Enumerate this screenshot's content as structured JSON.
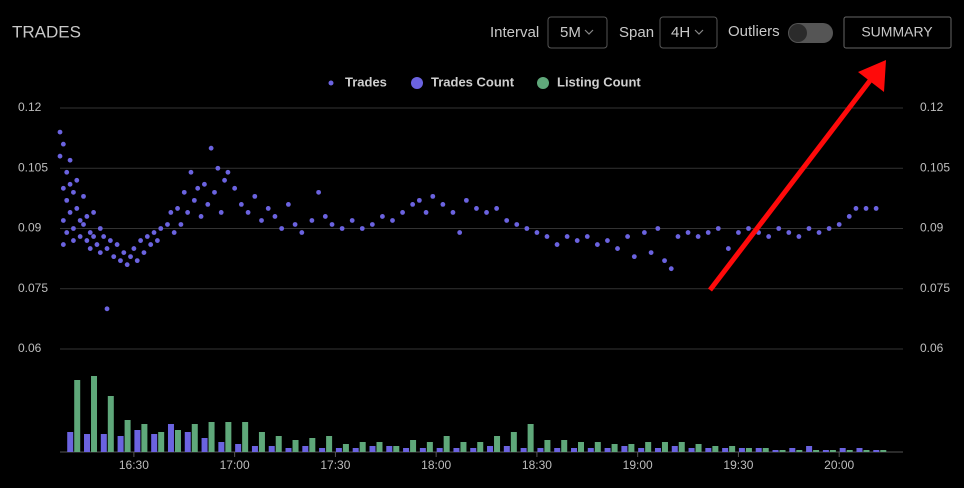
{
  "header": {
    "title": "TRADES",
    "interval_label": "Interval",
    "interval_value": "5M",
    "span_label": "Span",
    "span_value": "4H",
    "outliers_label": "Outliers",
    "summary_button": "SUMMARY"
  },
  "chart_data": {
    "type": "scatter",
    "xlim": [
      "16:08",
      "20:19"
    ],
    "xticks": [
      "16:30",
      "17:00",
      "17:30",
      "18:00",
      "18:30",
      "19:00",
      "19:30",
      "20:00"
    ],
    "ylim": [
      0.06,
      0.12
    ],
    "yticks": [
      0.06,
      0.075,
      0.09,
      0.105,
      0.12
    ],
    "grid": true,
    "series": [
      {
        "name": "Trades",
        "type": "scatter",
        "color": "#6b63e0",
        "x": [
          "16:08",
          "16:08",
          "16:09",
          "16:09",
          "16:09",
          "16:09",
          "16:10",
          "16:10",
          "16:10",
          "16:11",
          "16:11",
          "16:11",
          "16:12",
          "16:12",
          "16:12",
          "16:13",
          "16:13",
          "16:14",
          "16:14",
          "16:15",
          "16:15",
          "16:16",
          "16:16",
          "16:17",
          "16:17",
          "16:18",
          "16:18",
          "16:19",
          "16:20",
          "16:20",
          "16:21",
          "16:22",
          "16:22",
          "16:23",
          "16:24",
          "16:25",
          "16:26",
          "16:27",
          "16:28",
          "16:29",
          "16:30",
          "16:31",
          "16:32",
          "16:33",
          "16:34",
          "16:35",
          "16:36",
          "16:37",
          "16:38",
          "16:40",
          "16:41",
          "16:42",
          "16:43",
          "16:44",
          "16:45",
          "16:46",
          "16:47",
          "16:48",
          "16:49",
          "16:50",
          "16:51",
          "16:52",
          "16:53",
          "16:54",
          "16:55",
          "16:56",
          "16:57",
          "16:58",
          "17:00",
          "17:02",
          "17:04",
          "17:06",
          "17:08",
          "17:10",
          "17:12",
          "17:14",
          "17:16",
          "17:18",
          "17:20",
          "17:23",
          "17:25",
          "17:27",
          "17:29",
          "17:32",
          "17:35",
          "17:38",
          "17:41",
          "17:44",
          "17:47",
          "17:50",
          "17:53",
          "17:55",
          "17:57",
          "17:59",
          "18:02",
          "18:05",
          "18:07",
          "18:09",
          "18:12",
          "18:15",
          "18:18",
          "18:21",
          "18:24",
          "18:27",
          "18:30",
          "18:33",
          "18:36",
          "18:39",
          "18:42",
          "18:45",
          "18:48",
          "18:51",
          "18:54",
          "18:57",
          "18:59",
          "19:02",
          "19:04",
          "19:06",
          "19:08",
          "19:10",
          "19:12",
          "19:15",
          "19:18",
          "19:21",
          "19:24",
          "19:27",
          "19:30",
          "19:33",
          "19:36",
          "19:39",
          "19:42",
          "19:45",
          "19:48",
          "19:51",
          "19:54",
          "19:57",
          "20:00",
          "20:03",
          "20:05",
          "20:08",
          "20:11"
        ],
        "values": [
          0.114,
          0.108,
          0.111,
          0.1,
          0.092,
          0.086,
          0.104,
          0.097,
          0.089,
          0.107,
          0.101,
          0.094,
          0.099,
          0.09,
          0.087,
          0.102,
          0.095,
          0.092,
          0.088,
          0.098,
          0.091,
          0.093,
          0.087,
          0.089,
          0.085,
          0.094,
          0.088,
          0.086,
          0.09,
          0.084,
          0.088,
          0.085,
          0.07,
          0.087,
          0.083,
          0.086,
          0.082,
          0.084,
          0.081,
          0.083,
          0.085,
          0.082,
          0.087,
          0.084,
          0.088,
          0.086,
          0.089,
          0.087,
          0.09,
          0.091,
          0.094,
          0.089,
          0.095,
          0.091,
          0.099,
          0.094,
          0.104,
          0.097,
          0.1,
          0.093,
          0.101,
          0.096,
          0.11,
          0.099,
          0.105,
          0.094,
          0.102,
          0.104,
          0.1,
          0.096,
          0.094,
          0.098,
          0.092,
          0.095,
          0.093,
          0.09,
          0.096,
          0.091,
          0.089,
          0.092,
          0.099,
          0.093,
          0.091,
          0.09,
          0.092,
          0.09,
          0.091,
          0.093,
          0.092,
          0.094,
          0.096,
          0.097,
          0.094,
          0.098,
          0.096,
          0.094,
          0.089,
          0.097,
          0.095,
          0.094,
          0.095,
          0.092,
          0.091,
          0.09,
          0.089,
          0.088,
          0.086,
          0.088,
          0.087,
          0.088,
          0.086,
          0.087,
          0.085,
          0.088,
          0.083,
          0.089,
          0.084,
          0.09,
          0.082,
          0.08,
          0.088,
          0.089,
          0.088,
          0.089,
          0.09,
          0.085,
          0.089,
          0.09,
          0.089,
          0.088,
          0.09,
          0.089,
          0.088,
          0.09,
          0.089,
          0.09,
          0.091,
          0.093,
          0.095,
          0.095,
          0.095
        ]
      },
      {
        "name": "Trades Count",
        "type": "bar",
        "color": "#6b63e0",
        "x": [
          "16:10",
          "16:15",
          "16:20",
          "16:25",
          "16:30",
          "16:35",
          "16:40",
          "16:45",
          "16:50",
          "16:55",
          "17:00",
          "17:05",
          "17:10",
          "17:15",
          "17:20",
          "17:25",
          "17:30",
          "17:35",
          "17:40",
          "17:45",
          "17:50",
          "17:55",
          "18:00",
          "18:05",
          "18:10",
          "18:15",
          "18:20",
          "18:25",
          "18:30",
          "18:35",
          "18:40",
          "18:45",
          "18:50",
          "18:55",
          "19:00",
          "19:05",
          "19:10",
          "19:15",
          "19:20",
          "19:25",
          "19:30",
          "19:35",
          "19:40",
          "19:45",
          "19:50",
          "19:55",
          "20:00",
          "20:05",
          "20:10"
        ],
        "values": [
          10,
          9,
          9,
          8,
          11,
          9,
          14,
          10,
          7,
          5,
          4,
          3,
          3,
          2,
          3,
          2,
          2,
          2,
          3,
          3,
          2,
          2,
          2,
          2,
          2,
          3,
          3,
          2,
          2,
          2,
          2,
          2,
          2,
          3,
          2,
          2,
          3,
          2,
          2,
          2,
          2,
          2,
          1,
          2,
          3,
          1,
          2,
          2,
          1
        ]
      },
      {
        "name": "Listing Count",
        "type": "bar",
        "color": "#5fa87a",
        "x": [
          "16:10",
          "16:15",
          "16:20",
          "16:25",
          "16:30",
          "16:35",
          "16:40",
          "16:45",
          "16:50",
          "16:55",
          "17:00",
          "17:05",
          "17:10",
          "17:15",
          "17:20",
          "17:25",
          "17:30",
          "17:35",
          "17:40",
          "17:45",
          "17:50",
          "17:55",
          "18:00",
          "18:05",
          "18:10",
          "18:15",
          "18:20",
          "18:25",
          "18:30",
          "18:35",
          "18:40",
          "18:45",
          "18:50",
          "18:55",
          "19:00",
          "19:05",
          "19:10",
          "19:15",
          "19:20",
          "19:25",
          "19:30",
          "19:35",
          "19:40",
          "19:45",
          "19:50",
          "19:55",
          "20:00",
          "20:05",
          "20:10"
        ],
        "values": [
          36,
          38,
          28,
          16,
          14,
          10,
          11,
          14,
          15,
          15,
          15,
          10,
          8,
          6,
          7,
          8,
          4,
          5,
          5,
          3,
          6,
          5,
          8,
          5,
          5,
          8,
          10,
          14,
          6,
          6,
          5,
          5,
          4,
          4,
          5,
          5,
          5,
          4,
          3,
          3,
          2,
          2,
          1,
          1,
          1,
          1,
          1,
          1,
          1
        ]
      }
    ]
  }
}
